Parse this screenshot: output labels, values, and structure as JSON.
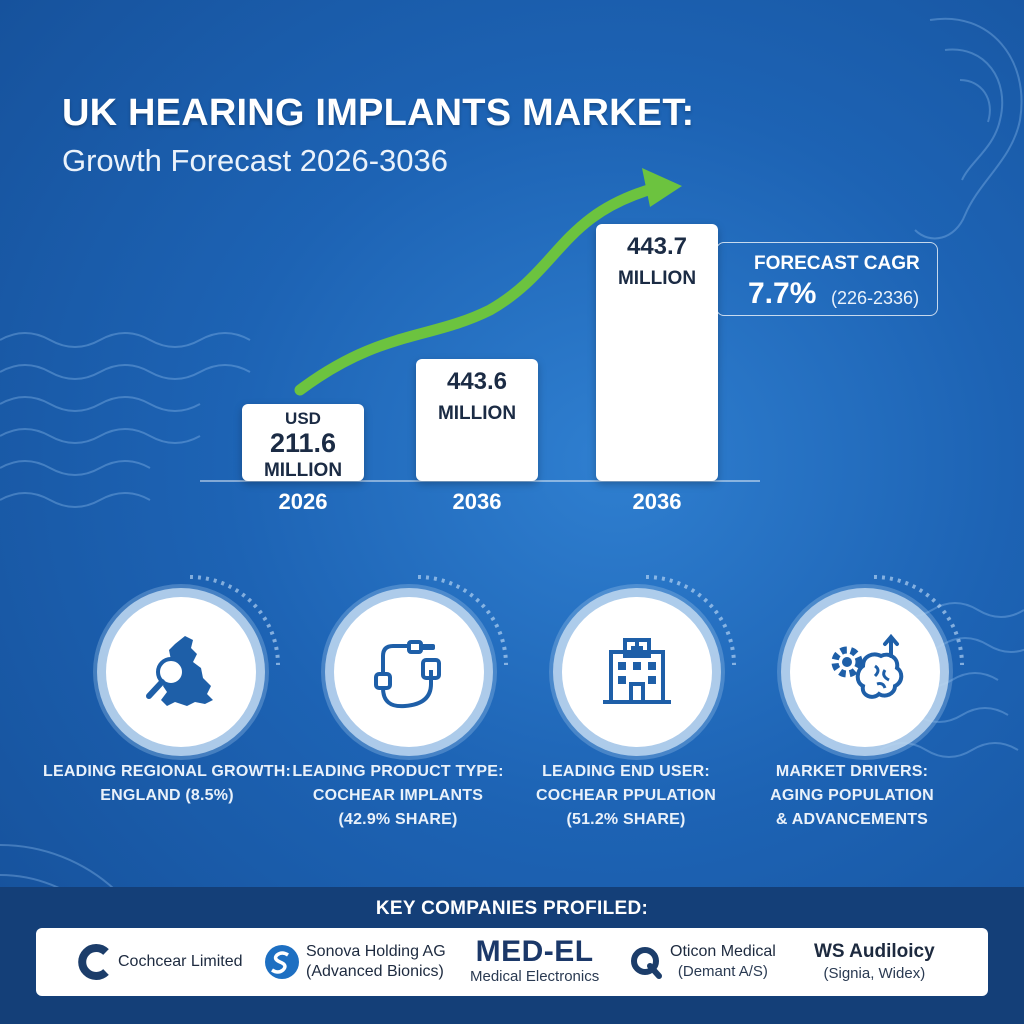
{
  "header": {
    "title": "UK HEARING IMPLANTS MARKET:",
    "subtitle": "Growth Forecast 2026-3036"
  },
  "chart_data": {
    "type": "bar",
    "title": "UK HEARING IMPLANTS MARKET:",
    "subtitle": "Growth Forecast 2026-3036",
    "categories": [
      "2026",
      "2036",
      "2036"
    ],
    "values": [
      211.6,
      443.6,
      443.7
    ],
    "bar_labels": [
      [
        "USD",
        "211.6",
        "MILLION"
      ],
      [
        "443.6",
        "MILLION"
      ],
      [
        "443.7",
        "MILLION"
      ]
    ],
    "trend_arrow": true,
    "colors": {
      "bar": "#ffffff",
      "trend": "#6cc33f",
      "label": "#1b2b44"
    }
  },
  "cagr": {
    "title": "FORECAST CAGR",
    "value": "7.7%",
    "period": "(226-2336)"
  },
  "stats": [
    {
      "icon": "map-magnifier-icon",
      "line1": "LEADING REGIONAL GROWTH:",
      "line2": "ENGLAND (8.5%)",
      "line3": ""
    },
    {
      "icon": "cochlear-implant-icon",
      "line1": "LEADING PRODUCT TYPE:",
      "line2": "COCHEAR IMPLANTS",
      "line3": "(42.9% SHARE)"
    },
    {
      "icon": "hospital-icon",
      "line1": "LEADING END USER:",
      "line2": "COCHEAR PPULATION",
      "line3": "(51.2% SHARE)"
    },
    {
      "icon": "gear-brain-icon",
      "line1": "MARKET DRIVERS:",
      "line2": "AGING POPULATION",
      "line3": "& ADVANCEMENTS"
    }
  ],
  "companies": {
    "heading": "KEY COMPANIES PROFILED:",
    "items": [
      {
        "logo": "cochlear-logo-icon",
        "line1": "Cochcear Limited",
        "line2": ""
      },
      {
        "logo": "sonova-logo-icon",
        "line1": "Sonova Holding AG",
        "line2": "(Advanced Bionics)"
      },
      {
        "logo": "med-el-logo",
        "line1": "MED-EL",
        "line2": "Medical Electronics"
      },
      {
        "logo": "oticon-logo-icon",
        "line1": "Oticon Medical",
        "line2": "(Demant A/S)"
      },
      {
        "logo": "",
        "line1": "WS Audiloicy",
        "line2": "(Signia, Widex)"
      }
    ]
  }
}
